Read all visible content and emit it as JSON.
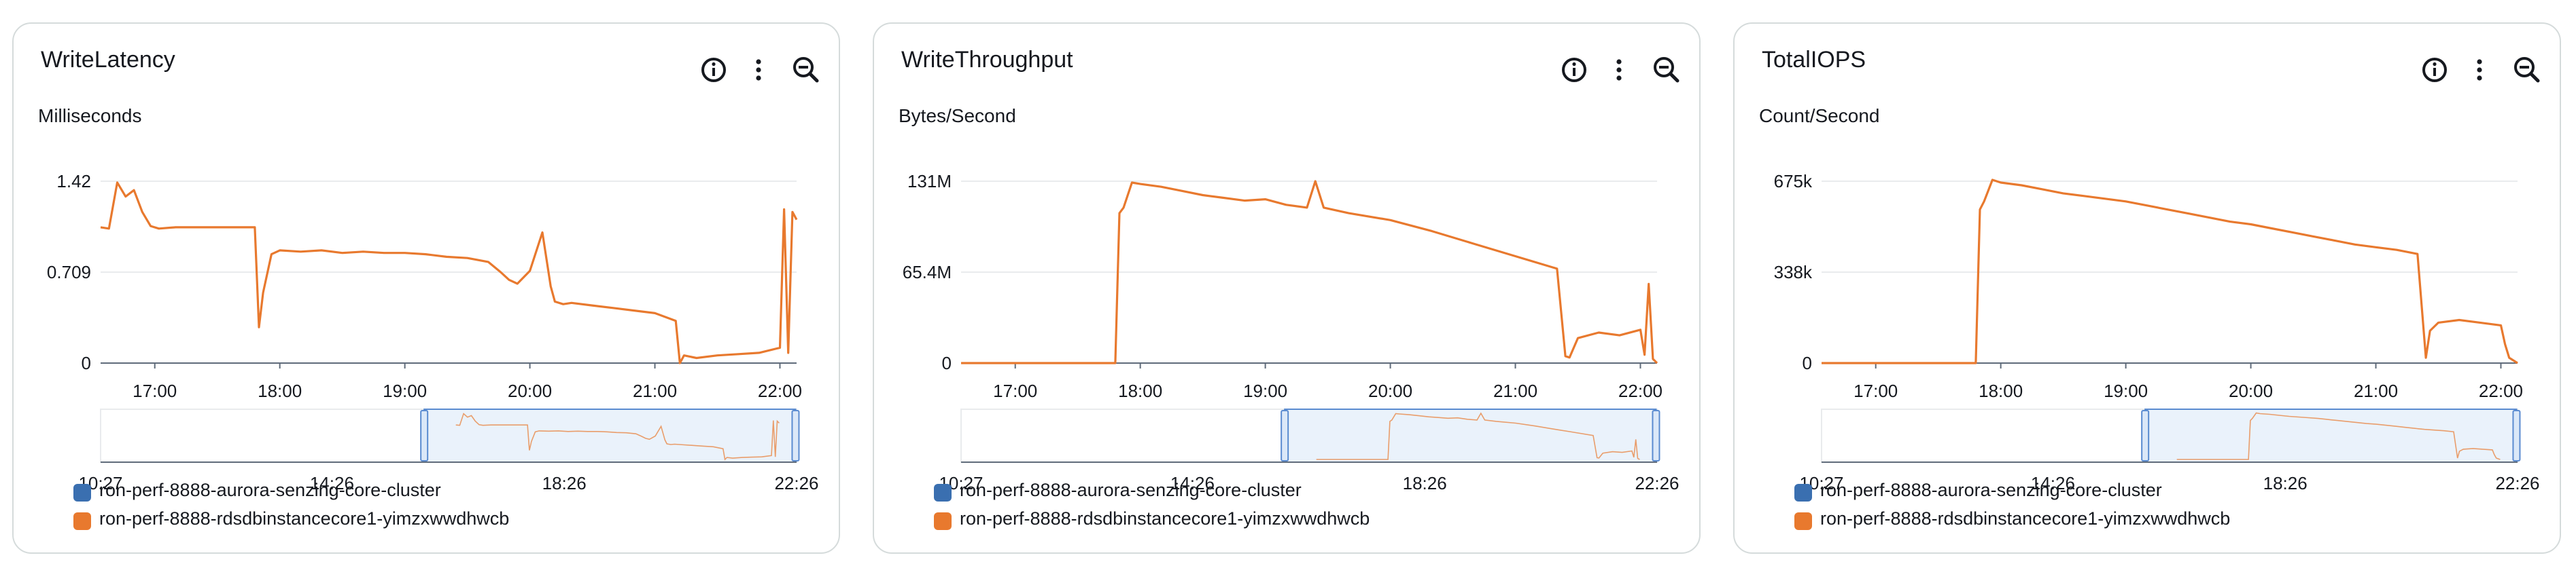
{
  "colors": {
    "series1": "#3a6fb0",
    "series2": "#e8792e",
    "grid": "#e9ebed",
    "axis": "#5f6b7a",
    "brush_fill": "#eaf2fb",
    "brush_border": "#5a8bd0"
  },
  "icons": {
    "info": "info-icon",
    "more": "more-vertical-icon",
    "zoom_out": "zoom-out-icon"
  },
  "panels": [
    {
      "title": "WriteLatency",
      "unit": "Milliseconds",
      "legend": [
        "ron-perf-8888-aurora-senzing-core-cluster",
        "ron-perf-8888-rdsdbinstancecore1-yimzxwwdhwcb"
      ],
      "chart_data": {
        "type": "line",
        "y_ticks": [
          "1.42",
          "0.709",
          "0"
        ],
        "ylim": [
          0,
          1.42
        ],
        "x_ticks": [
          "17:00",
          "18:00",
          "19:00",
          "20:00",
          "21:00",
          "22:00"
        ],
        "overview_ticks": [
          "10:27",
          "14:26",
          "18:26",
          "22:26"
        ],
        "series": [
          {
            "name": "ron-perf-8888-rdsdbinstancecore1-yimzxwwdhwcb",
            "color_key": "series2",
            "x": [
              "16:34",
              "16:38",
              "16:42",
              "16:46",
              "16:50",
              "16:54",
              "16:58",
              "17:02",
              "17:10",
              "17:20",
              "17:30",
              "17:40",
              "17:48",
              "17:50",
              "17:52",
              "17:56",
              "18:00",
              "18:10",
              "18:20",
              "18:30",
              "18:40",
              "18:50",
              "19:00",
              "19:10",
              "19:20",
              "19:30",
              "19:40",
              "19:46",
              "19:50",
              "19:54",
              "20:00",
              "20:06",
              "20:10",
              "20:12",
              "20:16",
              "20:20",
              "20:30",
              "20:40",
              "20:50",
              "21:00",
              "21:10",
              "21:12",
              "21:14",
              "21:20",
              "21:30",
              "21:40",
              "21:50",
              "22:00",
              "22:02",
              "22:04",
              "22:06",
              "22:08"
            ],
            "values": [
              1.06,
              1.05,
              1.41,
              1.3,
              1.35,
              1.18,
              1.07,
              1.05,
              1.06,
              1.06,
              1.06,
              1.06,
              1.06,
              0.28,
              0.55,
              0.85,
              0.88,
              0.87,
              0.88,
              0.86,
              0.87,
              0.86,
              0.86,
              0.85,
              0.83,
              0.82,
              0.79,
              0.71,
              0.65,
              0.62,
              0.72,
              1.02,
              0.6,
              0.48,
              0.46,
              0.47,
              0.45,
              0.43,
              0.41,
              0.39,
              0.33,
              0.0,
              0.06,
              0.04,
              0.06,
              0.07,
              0.08,
              0.12,
              1.2,
              0.08,
              1.18,
              1.12
            ]
          }
        ]
      }
    },
    {
      "title": "WriteThroughput",
      "unit": "Bytes/Second",
      "legend": [
        "ron-perf-8888-aurora-senzing-core-cluster",
        "ron-perf-8888-rdsdbinstancecore1-yimzxwwdhwcb"
      ],
      "chart_data": {
        "type": "line",
        "y_ticks": [
          "131M",
          "65.4M",
          "0"
        ],
        "ylim": [
          0,
          131000000
        ],
        "x_ticks": [
          "17:00",
          "18:00",
          "19:00",
          "20:00",
          "21:00",
          "22:00"
        ],
        "overview_ticks": [
          "10:27",
          "14:26",
          "18:26",
          "22:26"
        ],
        "series": [
          {
            "name": "ron-perf-8888-rdsdbinstancecore1-yimzxwwdhwcb",
            "color_key": "series2",
            "x": [
              "16:34",
              "17:00",
              "17:30",
              "17:48",
              "17:50",
              "17:52",
              "17:56",
              "18:00",
              "18:10",
              "18:20",
              "18:30",
              "18:40",
              "18:50",
              "19:00",
              "19:10",
              "19:20",
              "19:24",
              "19:28",
              "19:40",
              "20:00",
              "20:20",
              "20:40",
              "21:00",
              "21:20",
              "21:24",
              "21:26",
              "21:30",
              "21:40",
              "21:50",
              "22:00",
              "22:02",
              "22:04",
              "22:06",
              "22:08"
            ],
            "values": [
              0,
              0,
              0,
              0,
              108000000,
              112000000,
              130000000,
              129000000,
              127000000,
              124000000,
              121000000,
              119000000,
              117000000,
              118000000,
              114000000,
              112000000,
              131000000,
              112000000,
              108000000,
              103000000,
              95000000,
              86000000,
              77000000,
              68000000,
              5000000,
              4000000,
              18000000,
              22000000,
              20000000,
              24000000,
              6000000,
              57000000,
              3000000,
              0
            ]
          }
        ]
      }
    },
    {
      "title": "TotalIOPS",
      "unit": "Count/Second",
      "legend": [
        "ron-perf-8888-aurora-senzing-core-cluster",
        "ron-perf-8888-rdsdbinstancecore1-yimzxwwdhwcb"
      ],
      "chart_data": {
        "type": "line",
        "y_ticks": [
          "675k",
          "338k",
          "0"
        ],
        "ylim": [
          0,
          675000
        ],
        "x_ticks": [
          "17:00",
          "18:00",
          "19:00",
          "20:00",
          "21:00",
          "22:00"
        ],
        "overview_ticks": [
          "10:27",
          "14:26",
          "18:26",
          "22:26"
        ],
        "series": [
          {
            "name": "ron-perf-8888-rdsdbinstancecore1-yimzxwwdhwcb",
            "color_key": "series2",
            "x": [
              "16:34",
              "17:00",
              "17:30",
              "17:48",
              "17:50",
              "17:52",
              "17:56",
              "18:00",
              "18:10",
              "18:20",
              "18:30",
              "18:40",
              "18:50",
              "19:00",
              "19:10",
              "19:20",
              "19:30",
              "19:40",
              "19:50",
              "20:00",
              "20:10",
              "20:20",
              "20:30",
              "20:40",
              "20:50",
              "21:00",
              "21:10",
              "21:20",
              "21:24",
              "21:26",
              "21:30",
              "21:40",
              "21:50",
              "22:00",
              "22:02",
              "22:04",
              "22:08"
            ],
            "values": [
              0,
              0,
              0,
              0,
              570000,
              600000,
              680000,
              670000,
              660000,
              645000,
              630000,
              620000,
              610000,
              600000,
              585000,
              570000,
              555000,
              540000,
              525000,
              515000,
              500000,
              485000,
              470000,
              455000,
              440000,
              430000,
              420000,
              405000,
              20000,
              120000,
              150000,
              160000,
              150000,
              140000,
              70000,
              20000,
              0
            ]
          }
        ]
      }
    }
  ]
}
